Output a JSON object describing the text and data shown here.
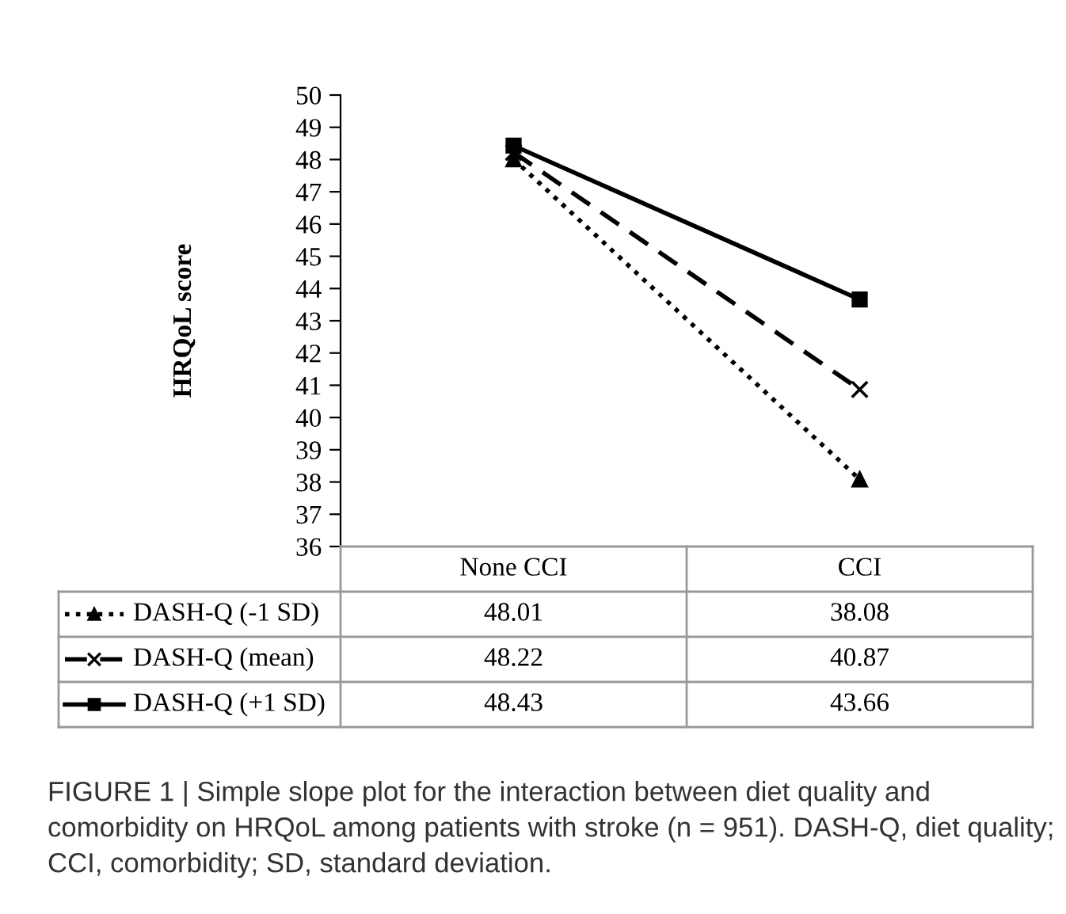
{
  "chart_data": {
    "type": "line",
    "ylabel": "HRQoL score",
    "categories": [
      "None CCI",
      "CCI"
    ],
    "series": [
      {
        "name": "DASH-Q (-1 SD)",
        "color": "#000000",
        "values": [
          48.01,
          38.08
        ],
        "marker": "triangle",
        "line_style": "dotted"
      },
      {
        "name": "DASH-Q (mean)",
        "color": "#000000",
        "values": [
          48.22,
          40.87
        ],
        "marker": "cross",
        "line_style": "dashed"
      },
      {
        "name": "DASH-Q (+1 SD)",
        "color": "#000000",
        "values": [
          48.43,
          43.66
        ],
        "marker": "square",
        "line_style": "solid"
      }
    ],
    "ylim": [
      36,
      50
    ],
    "yticks": [
      36,
      37,
      38,
      39,
      40,
      41,
      42,
      43,
      44,
      45,
      46,
      47,
      48,
      49,
      50
    ],
    "grid": false,
    "legend": "bottom",
    "data_labels": true,
    "annotations": [
      "FIGURE 1 | Simple slope plot for the interaction between diet quality and comorbidity on HRQoL among patients with stroke (n = 951). DASH-Q, diet quality; CCI, comorbidity; SD, standard deviation."
    ]
  }
}
